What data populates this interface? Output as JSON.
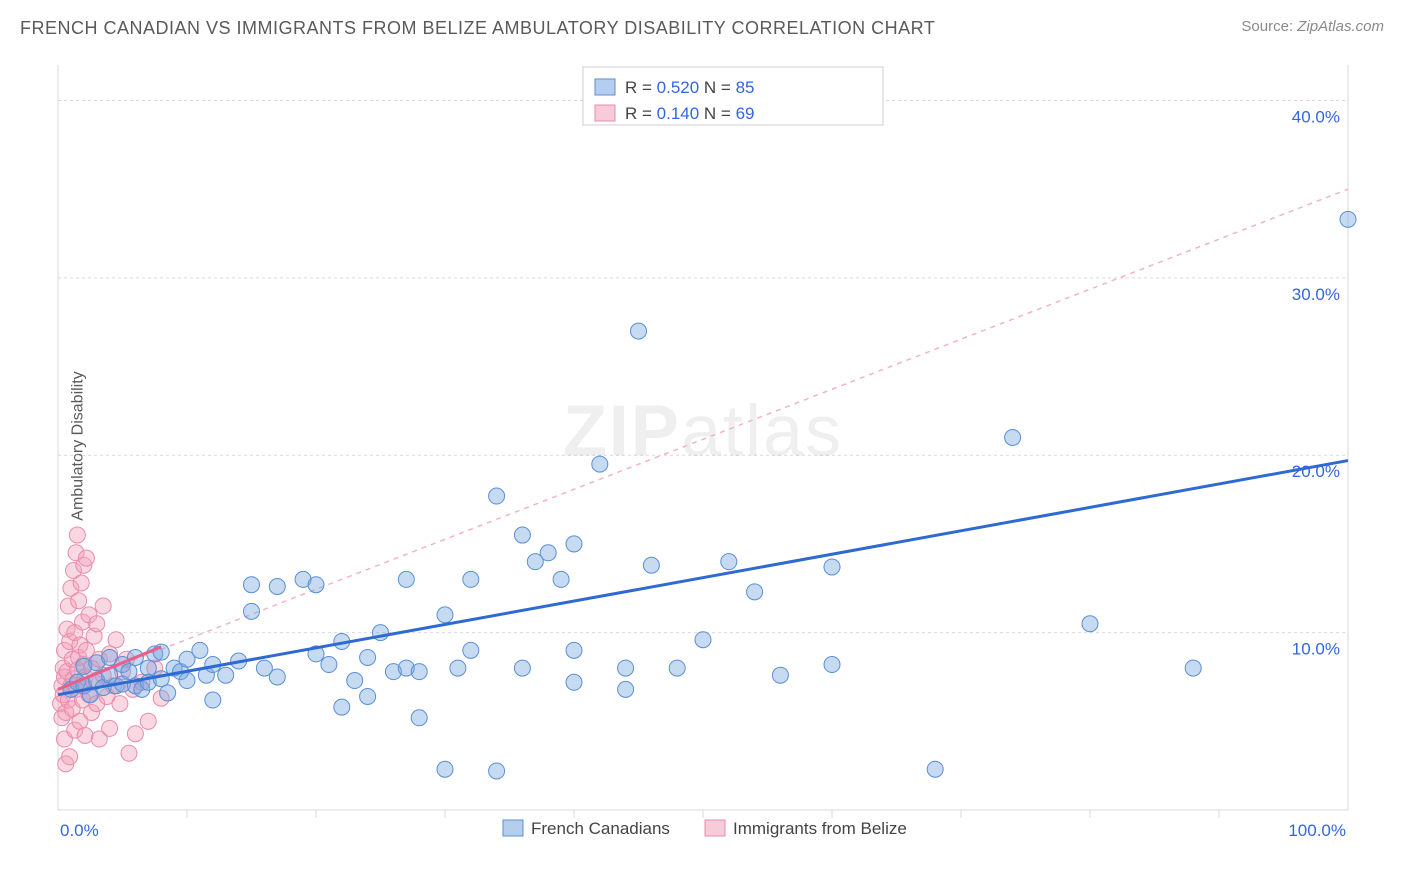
{
  "title": "FRENCH CANADIAN VS IMMIGRANTS FROM BELIZE AMBULATORY DISABILITY CORRELATION CHART",
  "source_label": "Source: ",
  "source_value": "ZipAtlas.com",
  "ylabel": "Ambulatory Disability",
  "watermark": "ZIPatlas",
  "chart": {
    "type": "scatter",
    "xlim": [
      0,
      100
    ],
    "ylim": [
      0,
      42
    ],
    "y_ticks": [
      10,
      20,
      30,
      40
    ],
    "y_tick_labels": [
      "10.0%",
      "20.0%",
      "30.0%",
      "40.0%"
    ],
    "x_extremes": [
      0,
      100
    ],
    "x_extreme_labels": [
      "0.0%",
      "100.0%"
    ],
    "x_minor_ticks": [
      10,
      20,
      30,
      40,
      50,
      60,
      70,
      80,
      90
    ],
    "background_color": "#ffffff",
    "grid_color": "#d9d9d9",
    "marker_radius": 8,
    "series": [
      {
        "name": "French Canadians",
        "color_fill": "rgba(120,166,224,0.42)",
        "color_stroke": "#5a8fd6",
        "R": "0.520",
        "N": "85",
        "trend": {
          "x1": 0,
          "y1": 6.5,
          "x2": 100,
          "y2": 19.7,
          "color": "#2e6ad1",
          "dash": false,
          "width": 3
        },
        "points": [
          [
            1,
            6.8
          ],
          [
            1.5,
            7.2
          ],
          [
            2,
            7.0
          ],
          [
            2,
            8.1
          ],
          [
            2.5,
            6.5
          ],
          [
            3,
            7.3
          ],
          [
            3,
            8.3
          ],
          [
            3.5,
            6.9
          ],
          [
            4,
            7.6
          ],
          [
            4,
            8.6
          ],
          [
            4.5,
            7.0
          ],
          [
            5,
            8.2
          ],
          [
            5,
            7.1
          ],
          [
            5.5,
            7.8
          ],
          [
            6,
            7.0
          ],
          [
            6,
            8.6
          ],
          [
            6.5,
            6.8
          ],
          [
            7,
            8.0
          ],
          [
            7,
            7.2
          ],
          [
            7.5,
            8.8
          ],
          [
            8,
            7.4
          ],
          [
            8,
            8.9
          ],
          [
            8.5,
            6.6
          ],
          [
            9,
            8.0
          ],
          [
            9.5,
            7.8
          ],
          [
            10,
            8.5
          ],
          [
            10,
            7.3
          ],
          [
            11,
            9.0
          ],
          [
            11.5,
            7.6
          ],
          [
            12,
            8.2
          ],
          [
            12,
            6.2
          ],
          [
            13,
            7.6
          ],
          [
            14,
            8.4
          ],
          [
            15,
            11.2
          ],
          [
            15,
            12.7
          ],
          [
            16,
            8.0
          ],
          [
            17,
            7.5
          ],
          [
            17,
            12.6
          ],
          [
            19,
            13.0
          ],
          [
            20,
            12.7
          ],
          [
            20,
            8.8
          ],
          [
            21,
            8.2
          ],
          [
            22,
            9.5
          ],
          [
            22,
            5.8
          ],
          [
            23,
            7.3
          ],
          [
            24,
            8.6
          ],
          [
            24,
            6.4
          ],
          [
            25,
            10.0
          ],
          [
            26,
            7.8
          ],
          [
            27,
            8.0
          ],
          [
            27,
            13.0
          ],
          [
            28,
            7.8
          ],
          [
            28,
            5.2
          ],
          [
            30,
            2.3
          ],
          [
            30,
            11.0
          ],
          [
            31,
            8.0
          ],
          [
            32,
            13.0
          ],
          [
            32,
            9.0
          ],
          [
            34,
            2.2
          ],
          [
            34,
            17.7
          ],
          [
            36,
            8.0
          ],
          [
            36,
            15.5
          ],
          [
            37,
            14.0
          ],
          [
            38,
            14.5
          ],
          [
            39,
            13.0
          ],
          [
            40,
            9.0
          ],
          [
            40,
            15.0
          ],
          [
            40,
            7.2
          ],
          [
            42,
            19.5
          ],
          [
            44,
            8.0
          ],
          [
            44,
            6.8
          ],
          [
            45,
            27.0
          ],
          [
            46,
            13.8
          ],
          [
            48,
            8.0
          ],
          [
            50,
            9.6
          ],
          [
            52,
            14.0
          ],
          [
            54,
            12.3
          ],
          [
            56,
            7.6
          ],
          [
            60,
            8.2
          ],
          [
            60,
            13.7
          ],
          [
            68,
            2.3
          ],
          [
            74,
            21.0
          ],
          [
            80,
            10.5
          ],
          [
            88,
            8.0
          ],
          [
            100,
            33.3
          ]
        ]
      },
      {
        "name": "Immigrants from Belize",
        "color_fill": "rgba(243,161,186,0.42)",
        "color_stroke": "#e98bad",
        "R": "0.140",
        "N": "69",
        "trend_solid": {
          "x1": 0,
          "y1": 6.8,
          "x2": 8,
          "y2": 9.2,
          "color": "#e85f8d",
          "width": 3
        },
        "trend_dash": {
          "x1": 0,
          "y1": 6.8,
          "x2": 100,
          "y2": 35.0,
          "color": "#f4b3c6",
          "width": 1.5
        },
        "points": [
          [
            0.2,
            6.0
          ],
          [
            0.3,
            7.0
          ],
          [
            0.3,
            5.2
          ],
          [
            0.4,
            8.0
          ],
          [
            0.4,
            6.5
          ],
          [
            0.5,
            4.0
          ],
          [
            0.5,
            7.5
          ],
          [
            0.5,
            9.0
          ],
          [
            0.6,
            2.6
          ],
          [
            0.6,
            5.5
          ],
          [
            0.7,
            10.2
          ],
          [
            0.7,
            7.8
          ],
          [
            0.8,
            11.5
          ],
          [
            0.8,
            6.2
          ],
          [
            0.9,
            3.0
          ],
          [
            0.9,
            9.5
          ],
          [
            1.0,
            7.0
          ],
          [
            1.0,
            12.5
          ],
          [
            1.1,
            8.5
          ],
          [
            1.1,
            5.7
          ],
          [
            1.2,
            13.5
          ],
          [
            1.2,
            7.4
          ],
          [
            1.3,
            4.5
          ],
          [
            1.3,
            10.0
          ],
          [
            1.4,
            6.8
          ],
          [
            1.4,
            14.5
          ],
          [
            1.5,
            7.9
          ],
          [
            1.5,
            15.5
          ],
          [
            1.6,
            8.6
          ],
          [
            1.6,
            11.8
          ],
          [
            1.7,
            5.0
          ],
          [
            1.7,
            9.3
          ],
          [
            1.8,
            7.0
          ],
          [
            1.8,
            12.8
          ],
          [
            1.9,
            6.2
          ],
          [
            1.9,
            10.6
          ],
          [
            2.0,
            8.2
          ],
          [
            2.0,
            13.8
          ],
          [
            2.1,
            7.5
          ],
          [
            2.1,
            4.2
          ],
          [
            2.2,
            9.0
          ],
          [
            2.2,
            14.2
          ],
          [
            2.4,
            6.5
          ],
          [
            2.4,
            11.0
          ],
          [
            2.6,
            8.0
          ],
          [
            2.6,
            5.5
          ],
          [
            2.8,
            9.8
          ],
          [
            2.8,
            7.2
          ],
          [
            3.0,
            6.0
          ],
          [
            3.0,
            10.5
          ],
          [
            3.2,
            8.5
          ],
          [
            3.2,
            4.0
          ],
          [
            3.5,
            7.6
          ],
          [
            3.5,
            11.5
          ],
          [
            3.8,
            6.4
          ],
          [
            4.0,
            8.8
          ],
          [
            4.0,
            4.6
          ],
          [
            4.3,
            7.0
          ],
          [
            4.5,
            9.6
          ],
          [
            4.8,
            6.0
          ],
          [
            5.0,
            7.8
          ],
          [
            5.3,
            8.5
          ],
          [
            5.5,
            3.2
          ],
          [
            5.8,
            6.8
          ],
          [
            6.0,
            4.3
          ],
          [
            6.5,
            7.2
          ],
          [
            7.0,
            5.0
          ],
          [
            7.5,
            8.0
          ],
          [
            8.0,
            6.3
          ]
        ]
      }
    ],
    "legend_top": {
      "rows": [
        {
          "swatch_fill": "rgba(120,166,224,0.55)",
          "swatch_stroke": "#5a8fd6",
          "R_label": "R =",
          "R_val": "0.520",
          "N_label": "N =",
          "N_val": "85"
        },
        {
          "swatch_fill": "rgba(243,161,186,0.55)",
          "swatch_stroke": "#e98bad",
          "R_label": "R =",
          "R_val": "0.140",
          "N_label": "N =",
          "N_val": "69"
        }
      ]
    },
    "legend_bottom": [
      {
        "swatch_fill": "rgba(120,166,224,0.55)",
        "swatch_stroke": "#5a8fd6",
        "label": "French Canadians"
      },
      {
        "swatch_fill": "rgba(243,161,186,0.55)",
        "swatch_stroke": "#e98bad",
        "label": "Immigrants from Belize"
      }
    ]
  }
}
